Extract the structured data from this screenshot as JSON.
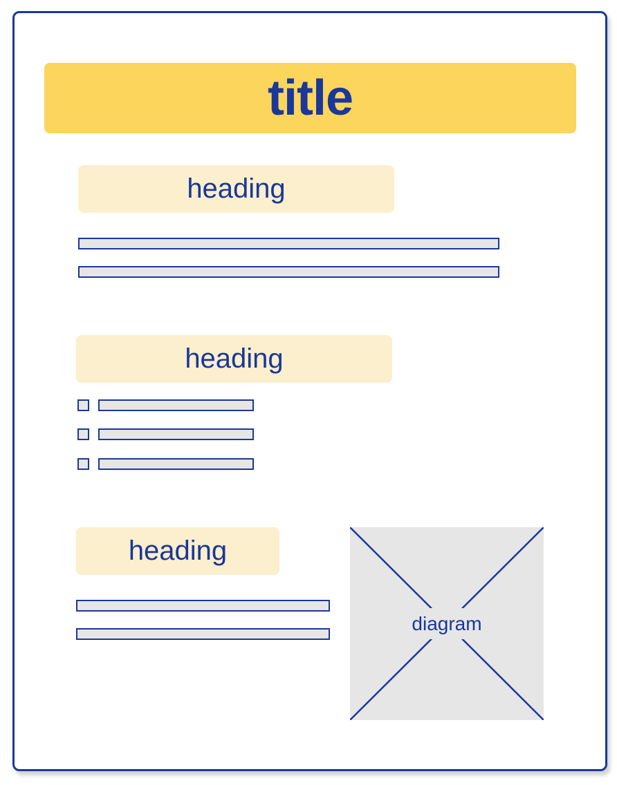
{
  "document": {
    "title": "title",
    "sections": [
      {
        "heading": "heading"
      },
      {
        "heading": "heading"
      },
      {
        "heading": "heading"
      }
    ],
    "diagram_label": "diagram"
  },
  "colors": {
    "accent": "#1a3799",
    "title_background": "#fbd55c",
    "heading_background": "#fbefcd",
    "placeholder_fill": "#e6e6e6"
  }
}
